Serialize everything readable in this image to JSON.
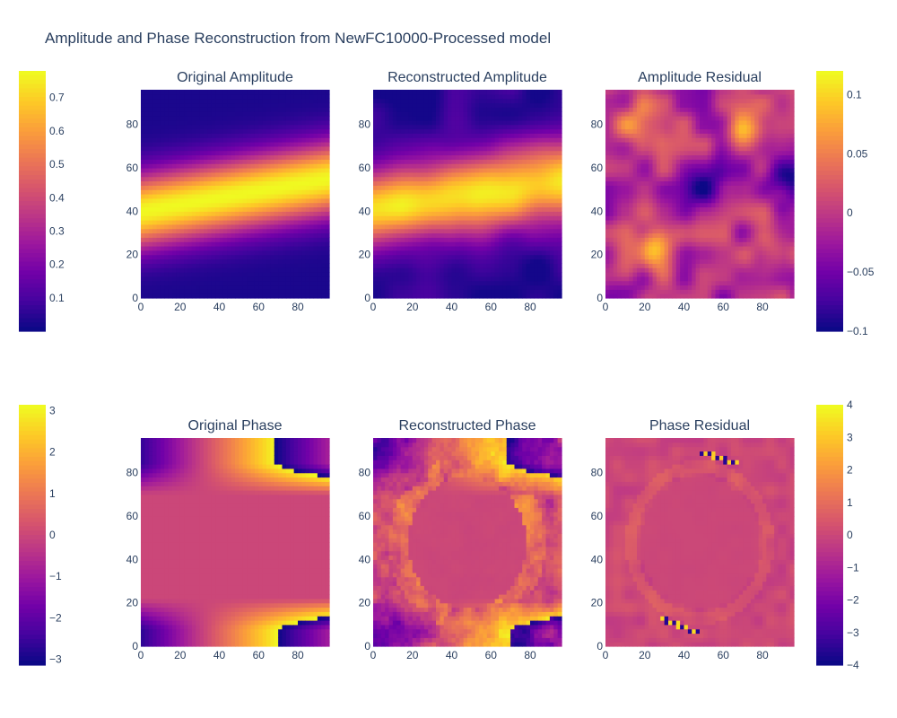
{
  "title": "Amplitude and Phase Reconstruction from NewFC10000-Processed model",
  "chart_data": [
    {
      "type": "heatmap",
      "title": "Original Amplitude",
      "x_range": [
        0,
        96
      ],
      "y_range": [
        0,
        96
      ],
      "x_ticks": [
        0,
        20,
        40,
        60,
        80
      ],
      "y_ticks": [
        0,
        20,
        40,
        60,
        80
      ],
      "z_range": [
        0.0,
        0.78
      ],
      "colorscale": "plasma",
      "pattern": "bright band centred near y≈48 rising from y≈40 at x=0 to y≈55 at x=96; low values (≈0.02) near top and bottom"
    },
    {
      "type": "heatmap",
      "title": "Reconstructed Amplitude",
      "x_range": [
        0,
        96
      ],
      "y_range": [
        0,
        96
      ],
      "x_ticks": [
        0,
        20,
        40,
        60,
        80
      ],
      "y_ticks": [
        0,
        20,
        40,
        60,
        80
      ],
      "z_range": [
        0.0,
        0.78
      ],
      "colorscale": "plasma",
      "pattern": "smoothed version of original amplitude with same tilted bright band"
    },
    {
      "type": "heatmap",
      "title": "Amplitude Residual",
      "x_range": [
        0,
        96
      ],
      "y_range": [
        0,
        96
      ],
      "x_ticks": [
        0,
        20,
        40,
        60,
        80
      ],
      "y_ticks": [
        0,
        20,
        40,
        60,
        80
      ],
      "z_range": [
        -0.1,
        0.12
      ],
      "colorscale": "plasma",
      "pattern": "blotchy residuals; high near (25,22) and (70,78); low near centre (50,52) and right edge"
    },
    {
      "type": "heatmap",
      "title": "Original Phase",
      "x_range": [
        0,
        96
      ],
      "y_range": [
        0,
        96
      ],
      "x_ticks": [
        0,
        20,
        40,
        60,
        80
      ],
      "y_ticks": [
        0,
        20,
        40,
        60,
        80
      ],
      "z_range": [
        -3.14,
        3.14
      ],
      "colorscale": "plasma",
      "pattern": "flat ≈0 in centre; tilted phase ramps near top and bottom with wrap discontinuities from -π to π"
    },
    {
      "type": "heatmap",
      "title": "Reconstructed Phase",
      "x_range": [
        0,
        96
      ],
      "y_range": [
        0,
        96
      ],
      "x_ticks": [
        0,
        20,
        40,
        60,
        80
      ],
      "y_ticks": [
        0,
        20,
        40,
        60,
        80
      ],
      "z_range": [
        -3.14,
        3.14
      ],
      "colorscale": "plasma",
      "pattern": "noisy reconstruction of phase ramps; flat circular region in centre"
    },
    {
      "type": "heatmap",
      "title": "Phase Residual",
      "x_range": [
        0,
        96
      ],
      "y_range": [
        0,
        96
      ],
      "x_ticks": [
        0,
        20,
        40,
        60,
        80
      ],
      "y_ticks": [
        0,
        20,
        40,
        60,
        80
      ],
      "z_range": [
        -4,
        4
      ],
      "colorscale": "plasma",
      "pattern": "mostly ≈0 with faint ring; sharp ±4 streaks along phase wrap lines"
    }
  ],
  "colorbars": [
    {
      "ticks": [
        "0.1",
        "0.2",
        "0.3",
        "0.4",
        "0.5",
        "0.6",
        "0.7"
      ],
      "values": [
        0.1,
        0.2,
        0.3,
        0.4,
        0.5,
        0.6,
        0.7
      ],
      "range": [
        0.0,
        0.78
      ]
    },
    {
      "ticks": [
        "0.1",
        "0.05",
        "0",
        "−0.05",
        "−0.1"
      ],
      "values": [
        0.1,
        0.05,
        0,
        -0.05,
        -0.1
      ],
      "range": [
        -0.1,
        0.12
      ]
    },
    {
      "ticks": [
        "3",
        "2",
        "1",
        "0",
        "−1",
        "−2",
        "−3"
      ],
      "values": [
        3,
        2,
        1,
        0,
        -1,
        -2,
        -3
      ],
      "range": [
        -3.14,
        3.14
      ]
    },
    {
      "ticks": [
        "4",
        "3",
        "2",
        "1",
        "0",
        "−1",
        "−2",
        "−3",
        "−4"
      ],
      "values": [
        4,
        3,
        2,
        1,
        0,
        -1,
        -2,
        -3,
        -4
      ],
      "range": [
        -4,
        4
      ]
    }
  ]
}
